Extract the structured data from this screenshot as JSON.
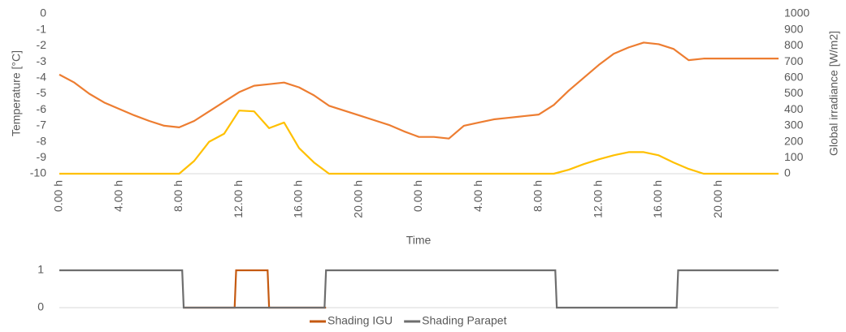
{
  "chart_data": [
    {
      "type": "line",
      "x_label": "Time",
      "y_label": "Temperature [°C]",
      "y2_label": "Global irradiance [W/m2]",
      "x": [
        0,
        1,
        2,
        3,
        4,
        5,
        6,
        7,
        8,
        9,
        10,
        11,
        12,
        13,
        14,
        15,
        16,
        17,
        18,
        19,
        20,
        21,
        22,
        23,
        24,
        25,
        26,
        27,
        28,
        29,
        30,
        31,
        32,
        33,
        34,
        35,
        36,
        37,
        38,
        39,
        40,
        41,
        42,
        43,
        44,
        45,
        46,
        47,
        48
      ],
      "xlim": [
        0,
        48
      ],
      "xticks": [
        {
          "value": 0,
          "label": "0.00 h"
        },
        {
          "value": 4,
          "label": "4.00 h"
        },
        {
          "value": 8,
          "label": "8.00 h"
        },
        {
          "value": 12,
          "label": "12.00 h"
        },
        {
          "value": 16,
          "label": "16.00 h"
        },
        {
          "value": 20,
          "label": "20.00 h"
        },
        {
          "value": 24,
          "label": "0.00 h"
        },
        {
          "value": 28,
          "label": "4.00 h"
        },
        {
          "value": 32,
          "label": "8.00 h"
        },
        {
          "value": 36,
          "label": "12.00 h"
        },
        {
          "value": 40,
          "label": "16.00 h"
        },
        {
          "value": 44,
          "label": "20.00 h"
        }
      ],
      "ylim": [
        -10,
        0
      ],
      "yticks": [
        -10,
        -9,
        -8,
        -7,
        -6,
        -5,
        -4,
        -3,
        -2,
        -1,
        0
      ],
      "y2lim": [
        0,
        1000
      ],
      "y2ticks": [
        0,
        100,
        200,
        300,
        400,
        500,
        600,
        700,
        800,
        900,
        1000
      ],
      "grid": false,
      "series": [
        {
          "color": "#ed7d31",
          "axis": "y",
          "values": [
            -3.8,
            -4.3,
            -5.0,
            -5.55,
            -5.95,
            -6.35,
            -6.7,
            -7.0,
            -7.1,
            -6.7,
            -6.1,
            -5.5,
            -4.9,
            -4.5,
            -4.4,
            -4.3,
            -4.6,
            -5.1,
            -5.75,
            -6.05,
            -6.35,
            -6.65,
            -6.95,
            -7.35,
            -7.7,
            -7.7,
            -7.8,
            -7.0,
            -6.8,
            -6.6,
            -6.5,
            -6.4,
            -6.3,
            -5.7,
            -4.8,
            -4.0,
            -3.2,
            -2.5,
            -2.1,
            -1.8,
            -1.9,
            -2.2,
            -2.9,
            -2.8,
            -2.8,
            -2.8,
            -2.8,
            -2.8,
            -2.8
          ]
        },
        {
          "color": "#ffc000",
          "axis": "y2",
          "values": [
            0,
            0,
            0,
            0,
            0,
            0,
            0,
            0,
            0,
            80,
            200,
            250,
            395,
            390,
            285,
            320,
            160,
            70,
            0,
            0,
            0,
            0,
            0,
            0,
            0,
            0,
            0,
            0,
            0,
            0,
            0,
            0,
            0,
            0,
            25,
            60,
            90,
            115,
            135,
            135,
            115,
            70,
            30,
            0,
            0,
            0,
            0,
            0,
            0
          ]
        }
      ]
    },
    {
      "type": "step",
      "xlim": [
        0,
        48
      ],
      "ylim": [
        0,
        1
      ],
      "yticks": [
        0,
        1
      ],
      "grid": false,
      "legend": "bottom",
      "series": [
        {
          "name": "Shading IGU",
          "color": "#c55a11",
          "x": [
            8.3,
            11.7,
            11.8,
            13.9,
            14.0,
            17.8
          ],
          "values": [
            0,
            0,
            1,
            1,
            0,
            0
          ]
        },
        {
          "name": "Shading Parapet",
          "color": "#6e6e6e",
          "x": [
            0,
            8.2,
            8.3,
            17.7,
            17.8,
            33.1,
            33.2,
            41.2,
            41.3,
            48
          ],
          "values": [
            1,
            1,
            0,
            0,
            1,
            1,
            0,
            0,
            1,
            1
          ]
        }
      ]
    }
  ]
}
